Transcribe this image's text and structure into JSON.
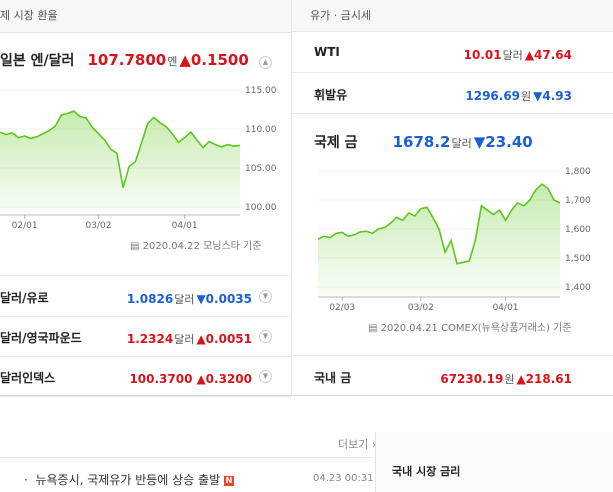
{
  "exchange": {
    "title": "제 시장 환율",
    "main": {
      "name": "일본 엔/달러",
      "value": "107.7800",
      "unit": "엔",
      "change": "▲0.1500",
      "direction": "up"
    },
    "chart": {
      "type": "line",
      "color": "#5cc61d",
      "ylim": [
        100,
        115
      ],
      "yticks": [
        {
          "value": 115,
          "label": "115.00"
        },
        {
          "value": 110,
          "label": "110.00"
        },
        {
          "value": 105,
          "label": "105.00"
        },
        {
          "value": 100,
          "label": "100.00"
        }
      ],
      "xlim": [
        0,
        39
      ],
      "xticks": [
        {
          "value": 4,
          "label": "02/01"
        },
        {
          "value": 16,
          "label": "03/02"
        },
        {
          "value": 30,
          "label": "04/01"
        }
      ],
      "values": [
        109.6,
        109.3,
        109.5,
        108.9,
        109.1,
        108.8,
        109.0,
        109.4,
        109.8,
        110.4,
        111.8,
        112.0,
        112.3,
        111.6,
        111.4,
        110.2,
        109.4,
        108.6,
        107.4,
        106.9,
        102.5,
        105.2,
        105.8,
        108.2,
        110.7,
        111.5,
        110.8,
        110.3,
        109.4,
        108.3,
        108.9,
        109.6,
        108.6,
        107.6,
        108.4,
        108.0,
        107.7,
        108.0,
        107.8,
        107.9
      ]
    },
    "source": "2020.04.22 모닝스타 기준",
    "rows": [
      {
        "name": "달러/유로",
        "value": "1.0826",
        "unit": "달러",
        "change": "▼0.0035",
        "direction": "down"
      },
      {
        "name": "달러/영국파운드",
        "value": "1.2324",
        "unit": "달러",
        "change": "▲0.0051",
        "direction": "up"
      },
      {
        "name": "달러인덱스",
        "value": "100.3700",
        "change": "▲0.3200",
        "direction": "up"
      }
    ]
  },
  "commodities": {
    "title": "유가 · 금시세",
    "rows_top": [
      {
        "name": "WTI",
        "value": "10.01",
        "unit": "달러",
        "change": "▲47.64",
        "direction": "up"
      },
      {
        "name": "휘발유",
        "value": "1296.69",
        "unit": "원",
        "change": "▼4.93",
        "direction": "down"
      }
    ],
    "main": {
      "name": "국제 금",
      "value": "1678.2",
      "unit": "달러",
      "change": "▼23.40",
      "direction": "down"
    },
    "chart": {
      "type": "line",
      "color": "#5cc61d",
      "ylim": [
        1400,
        1800
      ],
      "yticks": [
        {
          "value": 1800,
          "label": "1,800"
        },
        {
          "value": 1700,
          "label": "1,700"
        },
        {
          "value": 1600,
          "label": "1,600"
        },
        {
          "value": 1500,
          "label": "1,500"
        },
        {
          "value": 1400,
          "label": "1,400"
        }
      ],
      "xlim": [
        0,
        40
      ],
      "xticks": [
        {
          "value": 4,
          "label": "02/03"
        },
        {
          "value": 17,
          "label": "03/02"
        },
        {
          "value": 31,
          "label": "04/01"
        }
      ],
      "values": [
        1565,
        1575,
        1570,
        1585,
        1588,
        1575,
        1580,
        1590,
        1592,
        1585,
        1600,
        1605,
        1620,
        1640,
        1630,
        1655,
        1645,
        1670,
        1675,
        1640,
        1600,
        1520,
        1560,
        1480,
        1485,
        1490,
        1560,
        1680,
        1665,
        1650,
        1665,
        1630,
        1665,
        1690,
        1680,
        1700,
        1735,
        1755,
        1740,
        1700,
        1690
      ]
    },
    "source": "2020.04.21 COMEX(뉴욕상품거래소) 기준",
    "rows_bottom": [
      {
        "name": "국내 금",
        "value": "67230.19",
        "unit": "원",
        "change": "▲218.61",
        "direction": "up"
      }
    ]
  },
  "news": {
    "more": "더보기",
    "items": [
      {
        "title": "뉴욕증시, 국제유가 반등에 상승 출발",
        "badge": "N",
        "time": "04.23 00:31"
      }
    ]
  },
  "rates": {
    "title": "국내 시장 금리"
  }
}
